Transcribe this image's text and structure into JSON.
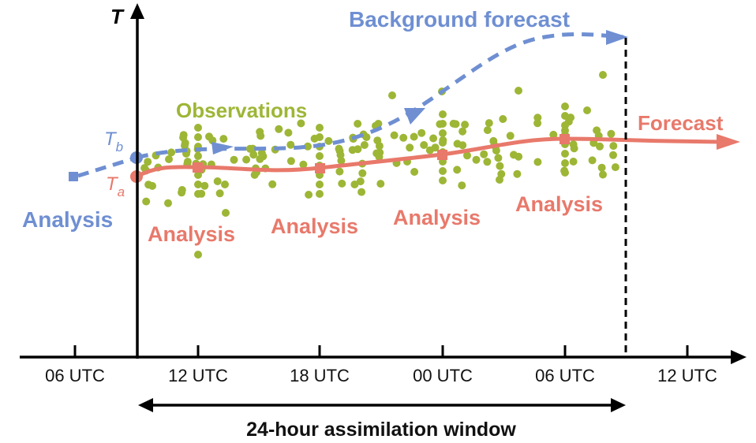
{
  "title": "",
  "axis": {
    "y_label": "T"
  },
  "time_ticks": [
    "06 UTC",
    "12 UTC",
    "18 UTC",
    "00 UTC",
    "06 UTC",
    "12 UTC"
  ],
  "labels": {
    "background_forecast": "Background forecast",
    "observations": "Observations",
    "forecast": "Forecast",
    "analysis_prior": "Analysis",
    "analysis_window": "Analysis",
    "tb_main": "T",
    "tb_sub": "b",
    "ta_main": "T",
    "ta_sub": "a"
  },
  "window": {
    "label": "24-hour assimilation window"
  },
  "colors": {
    "analysis_line": "#E8796B",
    "background_line": "#6F8FD2",
    "observations": "#9DB636",
    "axis": "#000000"
  },
  "icons": {
    "arrowheads": "triangle",
    "analysis_markers": "square"
  }
}
